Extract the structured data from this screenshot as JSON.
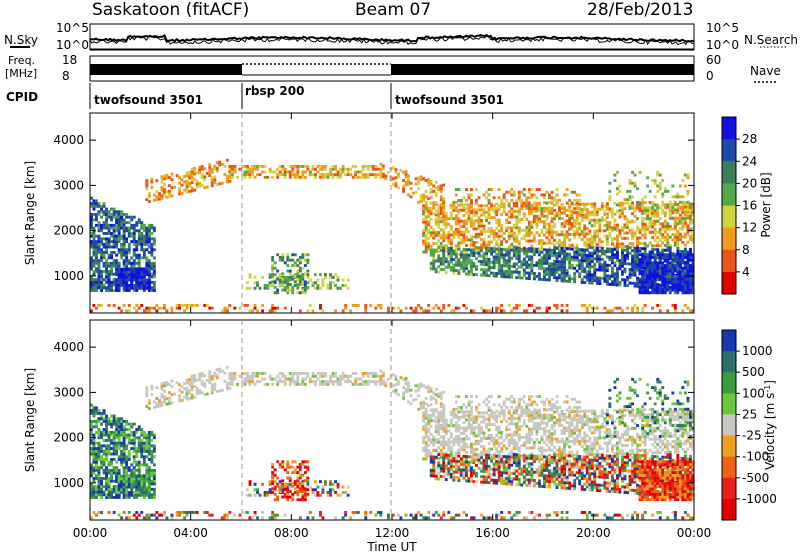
{
  "header": {
    "station": "Saskatoon (fitACF)",
    "beam": "Beam 07",
    "date": "28/Feb/2013"
  },
  "side_labels": {
    "n_sky": "N.Sky",
    "freq_line1": "Freq.",
    "freq_line2": "[MHz]",
    "cpid": "CPID",
    "n_search": "N.Search",
    "nave": "Nave"
  },
  "noise_panel": {
    "left_ticks": [
      "10^5",
      "10^0"
    ],
    "right_ticks": [
      "10^5",
      "10^0"
    ]
  },
  "freq_panel": {
    "left_ticks": [
      "18",
      "8"
    ],
    "right_ticks": [
      "60",
      "0"
    ]
  },
  "cpid_segments": [
    {
      "label": "twofsound 3501",
      "start_hour": 0,
      "end_hour": 6
    },
    {
      "label": "rbsp 200",
      "start_hour": 6,
      "end_hour": 12
    },
    {
      "label": "twofsound 3501",
      "start_hour": 12,
      "end_hour": 24
    }
  ],
  "chart_data": [
    {
      "type": "heatmap",
      "name": "power",
      "ylabel": "Slant Range [km]",
      "xlim": [
        0,
        24
      ],
      "ylim": [
        180,
        4600
      ],
      "yticks": [
        "1000",
        "2000",
        "3000",
        "4000"
      ],
      "colorbar": {
        "label": "Power [dB]",
        "ticks": [
          "28",
          "24",
          "20",
          "16",
          "12",
          "8",
          "4"
        ],
        "range": [
          0,
          30
        ],
        "colors": [
          "#1010e0",
          "#1e48a8",
          "#3c7e58",
          "#52a84a",
          "#cfd43e",
          "#f09a1e",
          "#ee5418",
          "#e00000"
        ]
      }
    },
    {
      "type": "heatmap",
      "name": "velocity",
      "ylabel": "Slant Range [km]",
      "xlabel": "Time UT",
      "xlim": [
        0,
        24
      ],
      "ylim": [
        180,
        4600
      ],
      "yticks": [
        "1000",
        "2000",
        "3000",
        "4000"
      ],
      "xticks": [
        "00:00",
        "04:00",
        "08:00",
        "12:00",
        "16:00",
        "20:00",
        "00:00"
      ],
      "colorbar": {
        "label": "Velocity [m s",
        "label_sup": "-1",
        "label_tail": "]",
        "ticks": [
          "1000",
          "500",
          "100",
          "25",
          "-25",
          "-100",
          "-500",
          "-1000"
        ],
        "colors": [
          "#1838b0",
          "#2e6e6a",
          "#3c9a40",
          "#6cc83a",
          "#c8c8c0",
          "#f0a020",
          "#f06010",
          "#e82020",
          "#e00000"
        ]
      }
    }
  ]
}
